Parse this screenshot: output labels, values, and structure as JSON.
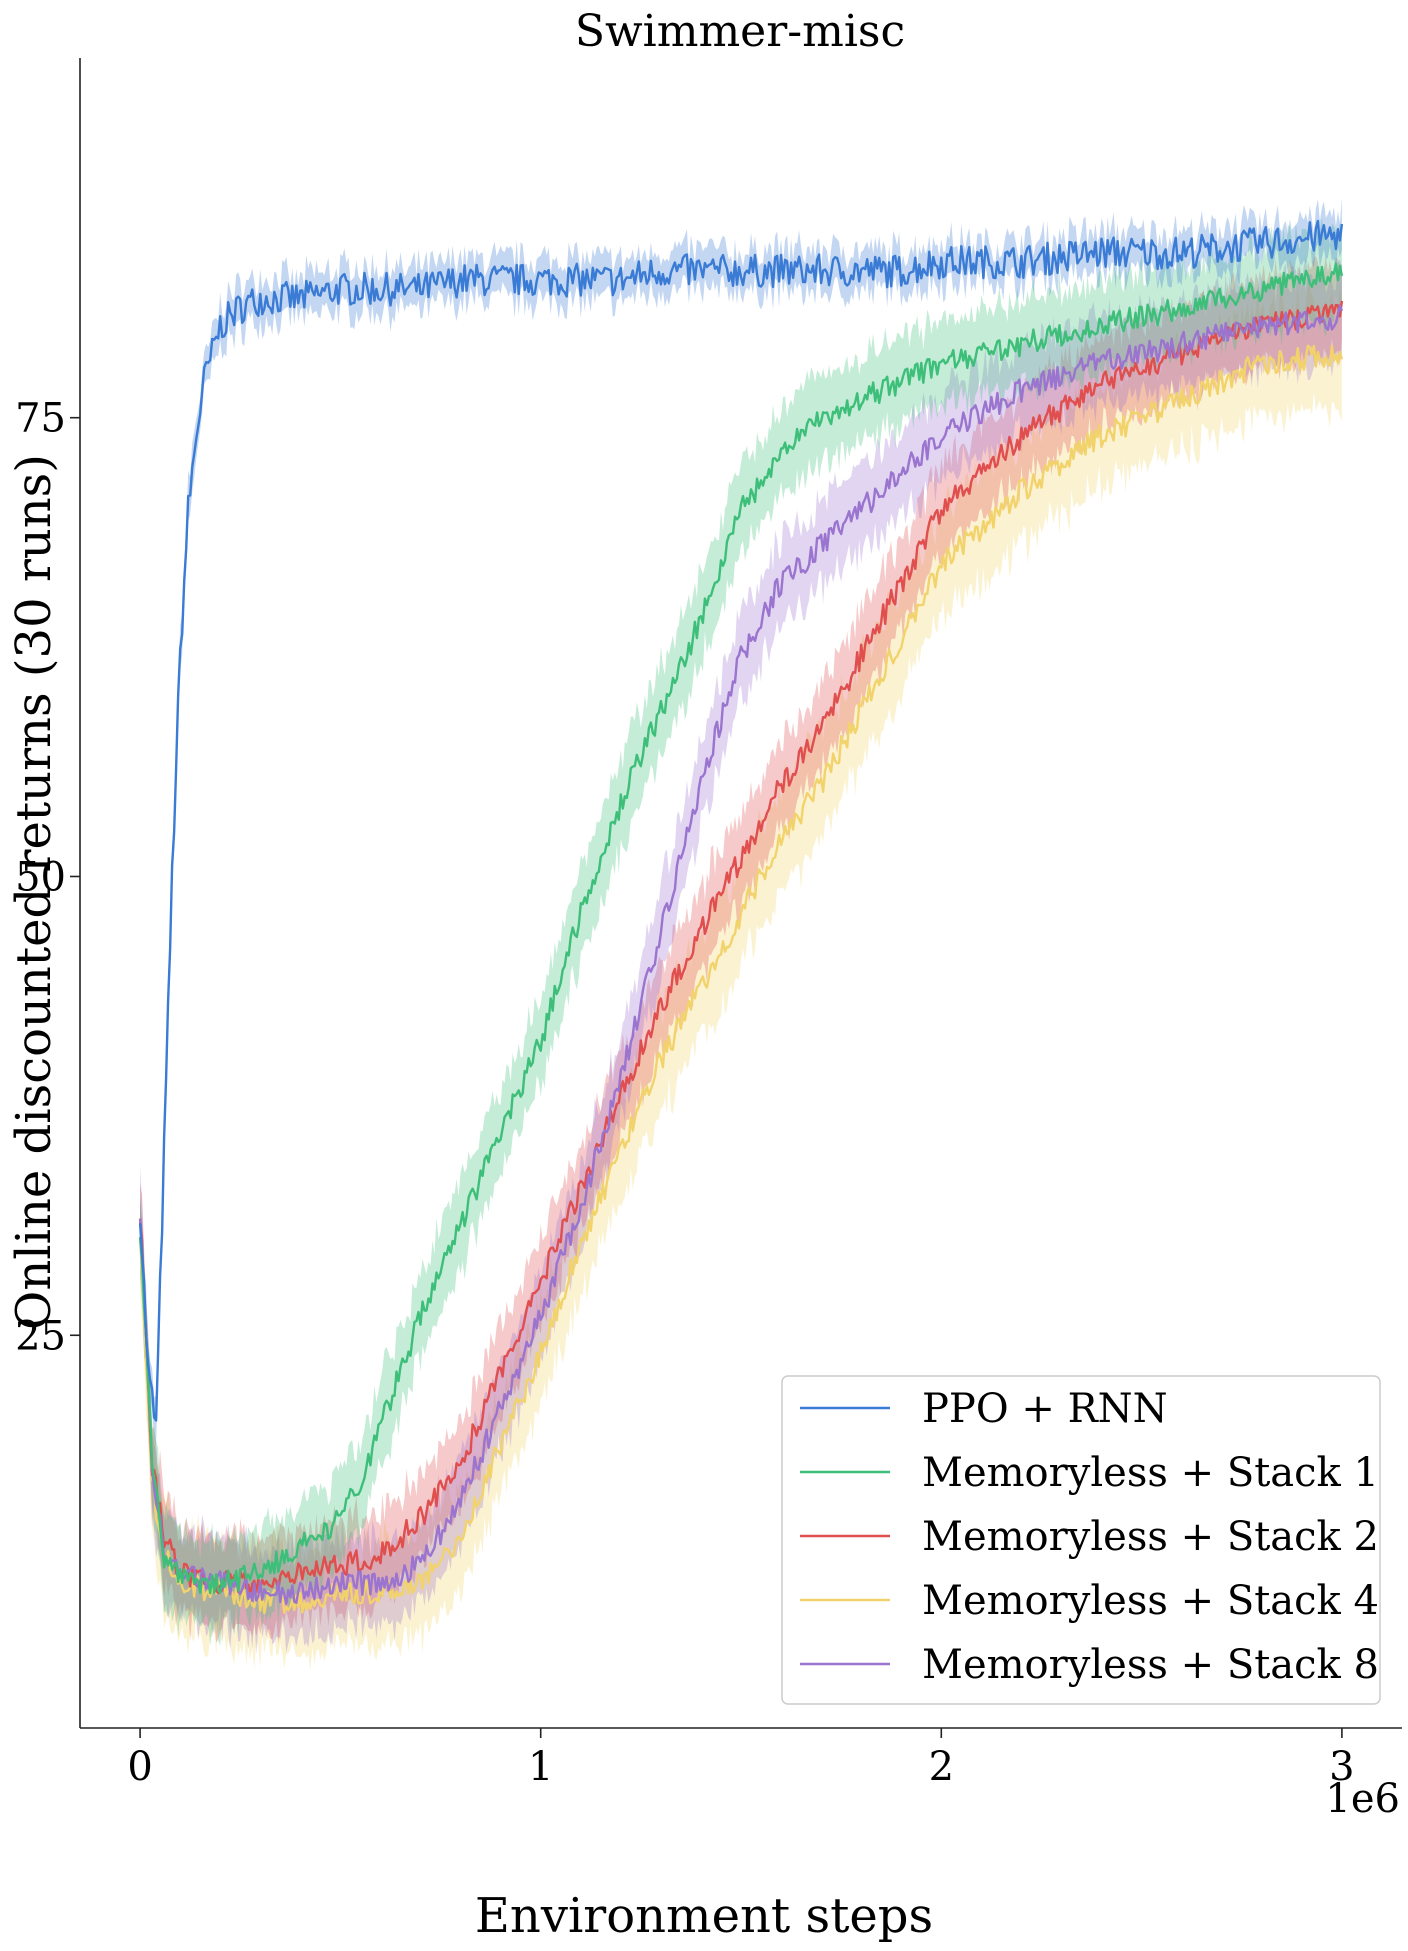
{
  "chart_data": {
    "type": "line",
    "title": "Swimmer-misc",
    "xlabel": "Environment steps",
    "ylabel": "Online discounted returns (30 runs)",
    "x_offset_label": "1e6",
    "xlim": [
      -0.15,
      3.15
    ],
    "ylim": [
      3.6,
      94.6
    ],
    "xticks": [
      0,
      1,
      2,
      3
    ],
    "xtick_labels": [
      "0",
      "1",
      "2",
      "3"
    ],
    "yticks": [
      25,
      50,
      75
    ],
    "ytick_labels": [
      "25",
      "50",
      "75"
    ],
    "grid": false,
    "legend_position": "bottom-right",
    "series": [
      {
        "name": "PPO + RNN",
        "color": "#3a7bd5",
        "x": [
          0,
          0.02,
          0.04,
          0.06,
          0.08,
          0.1,
          0.12,
          0.14,
          0.16,
          0.2,
          0.25,
          0.3,
          0.4,
          0.5,
          0.6,
          0.7,
          0.8,
          0.9,
          1.0,
          1.1,
          1.2,
          1.3,
          1.4,
          1.5,
          1.6,
          1.7,
          1.8,
          1.9,
          2.0,
          2.2,
          2.4,
          2.6,
          2.8,
          3.0
        ],
        "y": [
          32,
          23,
          20,
          35,
          50,
          62,
          70,
          74,
          77,
          80,
          81,
          81.5,
          81.5,
          82,
          82,
          82,
          82.5,
          82.5,
          82.5,
          82.5,
          82.5,
          83,
          83,
          83,
          83,
          83,
          83,
          83,
          83.5,
          83.5,
          84,
          84,
          84.5,
          85
        ],
        "band": 1.2
      },
      {
        "name": "Memoryless + Stack 1",
        "color": "#3dbf7a",
        "x": [
          0,
          0.03,
          0.06,
          0.1,
          0.15,
          0.2,
          0.3,
          0.4,
          0.5,
          0.55,
          0.6,
          0.65,
          0.7,
          0.8,
          0.9,
          1.0,
          1.1,
          1.2,
          1.3,
          1.4,
          1.5,
          1.6,
          1.7,
          1.8,
          1.9,
          2.0,
          2.2,
          2.4,
          2.6,
          2.8,
          3.0
        ],
        "y": [
          31,
          18,
          13,
          12,
          11.5,
          11.5,
          12,
          13.5,
          15,
          17,
          20,
          23,
          26,
          31,
          36,
          41,
          48,
          54,
          59,
          64,
          70,
          73,
          75,
          76,
          77,
          78,
          79,
          80,
          81,
          82,
          83
        ],
        "band": 2.5
      },
      {
        "name": "Memoryless + Stack 2",
        "color": "#e04e4e",
        "x": [
          0,
          0.03,
          0.06,
          0.1,
          0.2,
          0.3,
          0.4,
          0.5,
          0.6,
          0.7,
          0.8,
          0.9,
          1.0,
          1.1,
          1.2,
          1.3,
          1.4,
          1.5,
          1.6,
          1.7,
          1.8,
          1.9,
          2.0,
          2.2,
          2.4,
          2.6,
          2.8,
          3.0
        ],
        "y": [
          32,
          18,
          14,
          12,
          11.5,
          11.5,
          12,
          12.5,
          13,
          15,
          18,
          23,
          28,
          33,
          38,
          43,
          47,
          51,
          55,
          58,
          62,
          66,
          70,
          74,
          77,
          78.5,
          80,
          81
        ],
        "band": 2.5
      },
      {
        "name": "Memoryless + Stack 4",
        "color": "#f2d36b",
        "x": [
          0,
          0.03,
          0.06,
          0.1,
          0.2,
          0.3,
          0.4,
          0.5,
          0.6,
          0.7,
          0.8,
          0.9,
          1.0,
          1.1,
          1.2,
          1.3,
          1.4,
          1.5,
          1.6,
          1.7,
          1.8,
          1.9,
          2.0,
          2.2,
          2.4,
          2.6,
          2.8,
          3.0
        ],
        "y": [
          31,
          17,
          13,
          11.5,
          11,
          10.5,
          10.5,
          11,
          11,
          11.5,
          14,
          19,
          24,
          30,
          35,
          40,
          44,
          48,
          52,
          55,
          59,
          63,
          67,
          71,
          74,
          76,
          78,
          78.5
        ],
        "band": 3
      },
      {
        "name": "Memoryless + Stack 8",
        "color": "#9a74cf",
        "x": [
          0,
          0.03,
          0.06,
          0.1,
          0.2,
          0.3,
          0.4,
          0.5,
          0.6,
          0.7,
          0.8,
          0.9,
          1.0,
          1.1,
          1.2,
          1.3,
          1.4,
          1.5,
          1.6,
          1.7,
          1.8,
          1.9,
          2.0,
          2.2,
          2.4,
          2.6,
          2.8,
          3.0
        ],
        "y": [
          32,
          18,
          13,
          12,
          11.5,
          11,
          11,
          11.5,
          11.5,
          12.5,
          16,
          21,
          26,
          32,
          39,
          47,
          55,
          62,
          66,
          68,
          70,
          72,
          74,
          76.5,
          78,
          79,
          80,
          80.5
        ],
        "band": 2.5
      }
    ]
  }
}
